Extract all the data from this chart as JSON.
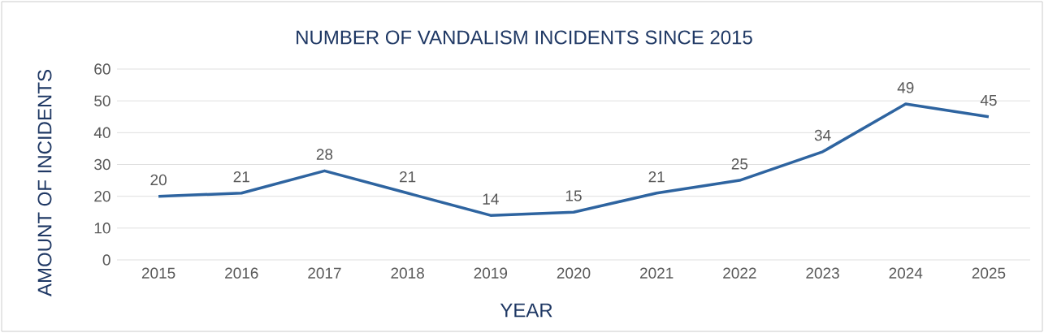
{
  "chart_data": {
    "type": "line",
    "title": "NUMBER OF VANDALISM INCIDENTS SINCE 2015",
    "xlabel": "YEAR",
    "ylabel": "AMOUNT OF INCIDENTS",
    "categories": [
      "2015",
      "2016",
      "2017",
      "2018",
      "2019",
      "2020",
      "2021",
      "2022",
      "2023",
      "2024",
      "2025"
    ],
    "values": [
      20,
      21,
      28,
      21,
      14,
      15,
      21,
      25,
      34,
      49,
      45
    ],
    "color": "#2e64a0",
    "ylim": [
      0,
      60
    ],
    "yticks": [
      0,
      10,
      20,
      30,
      40,
      50,
      60
    ],
    "grid": "y",
    "data_labels": true
  }
}
